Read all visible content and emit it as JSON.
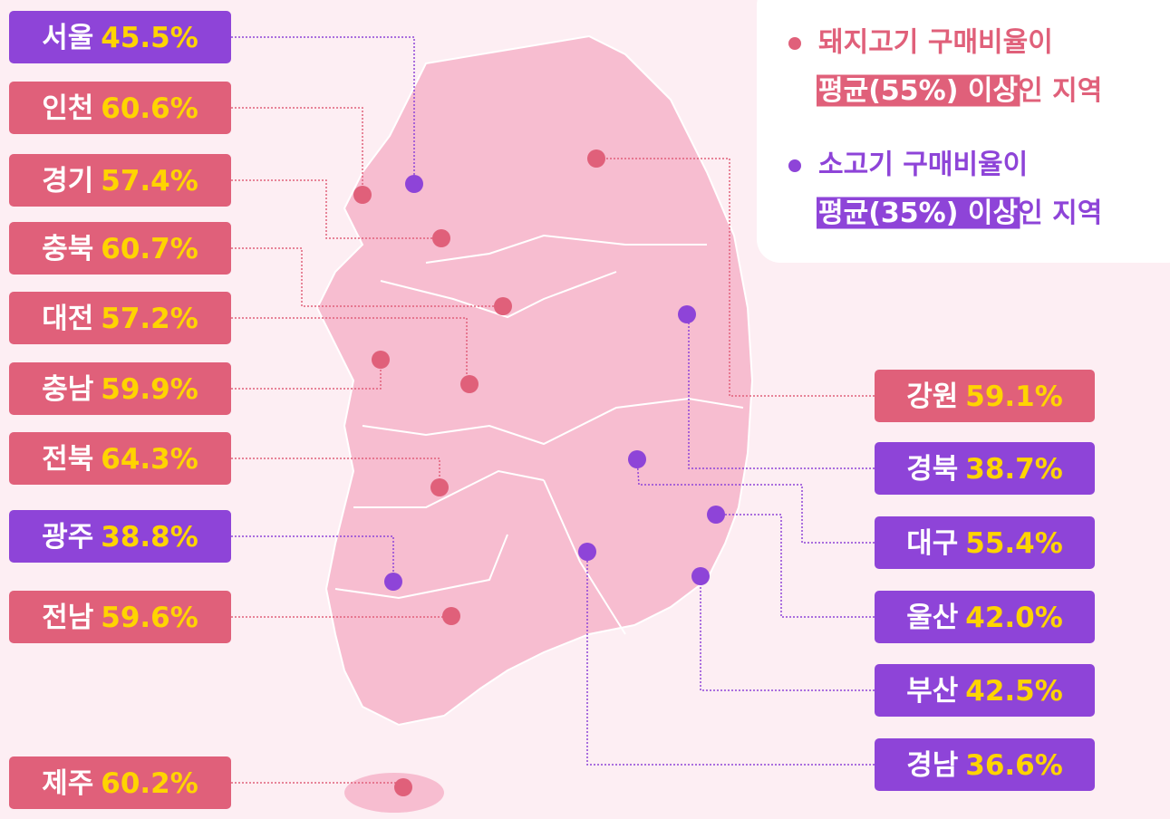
{
  "legend": [
    {
      "color": "#e0607a",
      "line1": "돼지고기 구매비율이",
      "highlight": "평균(55%) 이상",
      "rest": "인 지역"
    },
    {
      "color": "#8e44d8",
      "line1": "소고기 구매비율이",
      "highlight": "평균(35%) 이상",
      "rest": "인 지역"
    }
  ],
  "regions": [
    {
      "name": "서울",
      "value": "45.5%",
      "color": "#8e44d8"
    },
    {
      "name": "인천",
      "value": "60.6%",
      "color": "#e0607a"
    },
    {
      "name": "경기",
      "value": "57.4%",
      "color": "#e0607a"
    },
    {
      "name": "충북",
      "value": "60.7%",
      "color": "#e0607a"
    },
    {
      "name": "대전",
      "value": "57.2%",
      "color": "#e0607a"
    },
    {
      "name": "충남",
      "value": "59.9%",
      "color": "#e0607a"
    },
    {
      "name": "전북",
      "value": "64.3%",
      "color": "#e0607a"
    },
    {
      "name": "광주",
      "value": "38.8%",
      "color": "#8e44d8"
    },
    {
      "name": "전남",
      "value": "59.6%",
      "color": "#e0607a"
    },
    {
      "name": "제주",
      "value": "60.2%",
      "color": "#e0607a"
    },
    {
      "name": "강원",
      "value": "59.1%",
      "color": "#e0607a"
    },
    {
      "name": "경북",
      "value": "38.7%",
      "color": "#8e44d8"
    },
    {
      "name": "대구",
      "value": "55.4%",
      "color": "#8e44d8"
    },
    {
      "name": "울산",
      "value": "42.0%",
      "color": "#8e44d8"
    },
    {
      "name": "부산",
      "value": "42.5%",
      "color": "#8e44d8"
    },
    {
      "name": "경남",
      "value": "36.6%",
      "color": "#8e44d8"
    }
  ]
}
